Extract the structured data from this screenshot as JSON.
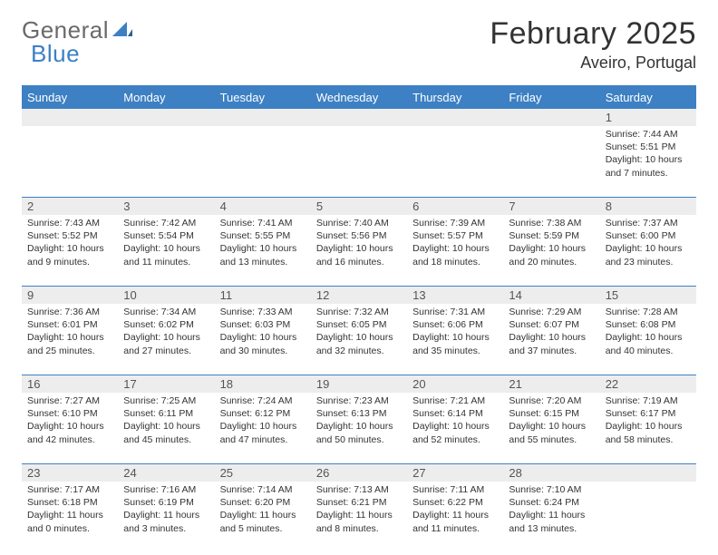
{
  "brand": {
    "general": "General",
    "blue": "Blue"
  },
  "title": "February 2025",
  "location": "Aveiro, Portugal",
  "colors": {
    "header_bg": "#3d80c3",
    "header_text": "#ffffff",
    "daynum_bg": "#ededed",
    "row_border": "#3d80c3",
    "body_text": "#333333",
    "logo_text": "#6a6a6a"
  },
  "fonts": {
    "title_size_pt": 26,
    "location_size_pt": 14,
    "header_size_pt": 10,
    "daynum_size_pt": 10,
    "info_size_pt": 8
  },
  "weekdays": [
    "Sunday",
    "Monday",
    "Tuesday",
    "Wednesday",
    "Thursday",
    "Friday",
    "Saturday"
  ],
  "weeks": [
    [
      null,
      null,
      null,
      null,
      null,
      null,
      {
        "n": "1",
        "sr": "Sunrise: 7:44 AM",
        "ss": "Sunset: 5:51 PM",
        "dl": "Daylight: 10 hours and 7 minutes."
      }
    ],
    [
      {
        "n": "2",
        "sr": "Sunrise: 7:43 AM",
        "ss": "Sunset: 5:52 PM",
        "dl": "Daylight: 10 hours and 9 minutes."
      },
      {
        "n": "3",
        "sr": "Sunrise: 7:42 AM",
        "ss": "Sunset: 5:54 PM",
        "dl": "Daylight: 10 hours and 11 minutes."
      },
      {
        "n": "4",
        "sr": "Sunrise: 7:41 AM",
        "ss": "Sunset: 5:55 PM",
        "dl": "Daylight: 10 hours and 13 minutes."
      },
      {
        "n": "5",
        "sr": "Sunrise: 7:40 AM",
        "ss": "Sunset: 5:56 PM",
        "dl": "Daylight: 10 hours and 16 minutes."
      },
      {
        "n": "6",
        "sr": "Sunrise: 7:39 AM",
        "ss": "Sunset: 5:57 PM",
        "dl": "Daylight: 10 hours and 18 minutes."
      },
      {
        "n": "7",
        "sr": "Sunrise: 7:38 AM",
        "ss": "Sunset: 5:59 PM",
        "dl": "Daylight: 10 hours and 20 minutes."
      },
      {
        "n": "8",
        "sr": "Sunrise: 7:37 AM",
        "ss": "Sunset: 6:00 PM",
        "dl": "Daylight: 10 hours and 23 minutes."
      }
    ],
    [
      {
        "n": "9",
        "sr": "Sunrise: 7:36 AM",
        "ss": "Sunset: 6:01 PM",
        "dl": "Daylight: 10 hours and 25 minutes."
      },
      {
        "n": "10",
        "sr": "Sunrise: 7:34 AM",
        "ss": "Sunset: 6:02 PM",
        "dl": "Daylight: 10 hours and 27 minutes."
      },
      {
        "n": "11",
        "sr": "Sunrise: 7:33 AM",
        "ss": "Sunset: 6:03 PM",
        "dl": "Daylight: 10 hours and 30 minutes."
      },
      {
        "n": "12",
        "sr": "Sunrise: 7:32 AM",
        "ss": "Sunset: 6:05 PM",
        "dl": "Daylight: 10 hours and 32 minutes."
      },
      {
        "n": "13",
        "sr": "Sunrise: 7:31 AM",
        "ss": "Sunset: 6:06 PM",
        "dl": "Daylight: 10 hours and 35 minutes."
      },
      {
        "n": "14",
        "sr": "Sunrise: 7:29 AM",
        "ss": "Sunset: 6:07 PM",
        "dl": "Daylight: 10 hours and 37 minutes."
      },
      {
        "n": "15",
        "sr": "Sunrise: 7:28 AM",
        "ss": "Sunset: 6:08 PM",
        "dl": "Daylight: 10 hours and 40 minutes."
      }
    ],
    [
      {
        "n": "16",
        "sr": "Sunrise: 7:27 AM",
        "ss": "Sunset: 6:10 PM",
        "dl": "Daylight: 10 hours and 42 minutes."
      },
      {
        "n": "17",
        "sr": "Sunrise: 7:25 AM",
        "ss": "Sunset: 6:11 PM",
        "dl": "Daylight: 10 hours and 45 minutes."
      },
      {
        "n": "18",
        "sr": "Sunrise: 7:24 AM",
        "ss": "Sunset: 6:12 PM",
        "dl": "Daylight: 10 hours and 47 minutes."
      },
      {
        "n": "19",
        "sr": "Sunrise: 7:23 AM",
        "ss": "Sunset: 6:13 PM",
        "dl": "Daylight: 10 hours and 50 minutes."
      },
      {
        "n": "20",
        "sr": "Sunrise: 7:21 AM",
        "ss": "Sunset: 6:14 PM",
        "dl": "Daylight: 10 hours and 52 minutes."
      },
      {
        "n": "21",
        "sr": "Sunrise: 7:20 AM",
        "ss": "Sunset: 6:15 PM",
        "dl": "Daylight: 10 hours and 55 minutes."
      },
      {
        "n": "22",
        "sr": "Sunrise: 7:19 AM",
        "ss": "Sunset: 6:17 PM",
        "dl": "Daylight: 10 hours and 58 minutes."
      }
    ],
    [
      {
        "n": "23",
        "sr": "Sunrise: 7:17 AM",
        "ss": "Sunset: 6:18 PM",
        "dl": "Daylight: 11 hours and 0 minutes."
      },
      {
        "n": "24",
        "sr": "Sunrise: 7:16 AM",
        "ss": "Sunset: 6:19 PM",
        "dl": "Daylight: 11 hours and 3 minutes."
      },
      {
        "n": "25",
        "sr": "Sunrise: 7:14 AM",
        "ss": "Sunset: 6:20 PM",
        "dl": "Daylight: 11 hours and 5 minutes."
      },
      {
        "n": "26",
        "sr": "Sunrise: 7:13 AM",
        "ss": "Sunset: 6:21 PM",
        "dl": "Daylight: 11 hours and 8 minutes."
      },
      {
        "n": "27",
        "sr": "Sunrise: 7:11 AM",
        "ss": "Sunset: 6:22 PM",
        "dl": "Daylight: 11 hours and 11 minutes."
      },
      {
        "n": "28",
        "sr": "Sunrise: 7:10 AM",
        "ss": "Sunset: 6:24 PM",
        "dl": "Daylight: 11 hours and 13 minutes."
      },
      null
    ]
  ]
}
